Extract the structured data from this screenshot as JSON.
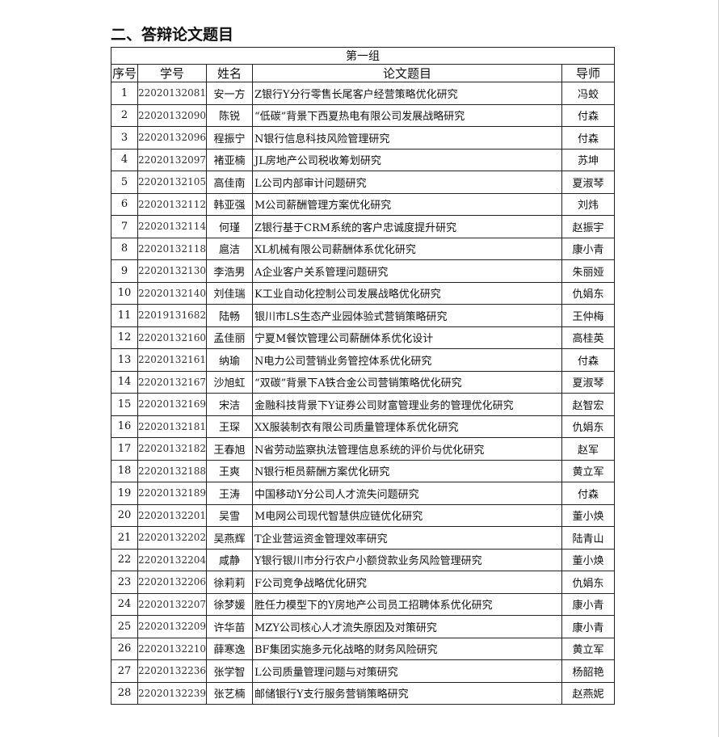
{
  "section_title": "二、答辩论文题目",
  "table": {
    "group": "第一组",
    "headers": [
      "序号",
      "学号",
      "姓名",
      "论文题目",
      "导师"
    ],
    "rows": [
      [
        "1",
        "22020132081",
        "安一方",
        "Z银行Y分行零售长尾客户经营策略优化研究",
        "冯蛟"
      ],
      [
        "2",
        "22020132090",
        "陈锐",
        "“低碳”背景下西夏热电有限公司发展战略研究",
        "付森"
      ],
      [
        "3",
        "22020132096",
        "程振宁",
        "N银行信息科技风险管理研究",
        "付森"
      ],
      [
        "4",
        "22020132097",
        "褚亚楠",
        "JL房地产公司税收筹划研究",
        "苏坤"
      ],
      [
        "5",
        "22020132105",
        "高佳南",
        "L公司内部审计问题研究",
        "夏淑琴"
      ],
      [
        "6",
        "22020132112",
        "韩亚强",
        "M公司薪酬管理方案优化研究",
        "刘炜"
      ],
      [
        "7",
        "22020132114",
        "何瑾",
        "Z银行基于CRM系统的客户忠诚度提升研究",
        "赵振宇"
      ],
      [
        "8",
        "22020132118",
        "扈洁",
        "XL机械有限公司薪酬体系优化研究",
        "康小青"
      ],
      [
        "9",
        "22020132130",
        "李浩男",
        "A企业客户关系管理问题研究",
        "朱丽娅"
      ],
      [
        "10",
        "22020132140",
        "刘佳瑞",
        "K工业自动化控制公司发展战略优化研究",
        "仇娟东"
      ],
      [
        "11",
        "22019131682",
        "陆畅",
        "银川市LS生态产业园体验式营销策略研究",
        "王仲梅"
      ],
      [
        "12",
        "22020132160",
        "孟佳丽",
        "宁夏M餐饮管理公司薪酬体系优化设计",
        "高桂英"
      ],
      [
        "13",
        "22020132161",
        "纳瑜",
        "N电力公司营销业务管控体系优化研究",
        "付森"
      ],
      [
        "14",
        "22020132167",
        "沙旭虹",
        "“双碳”背景下A铁合金公司营销策略优化研究",
        "夏淑琴"
      ],
      [
        "15",
        "22020132169",
        "宋洁",
        "金融科技背景下Y证券公司财富管理业务的管理优化研究",
        "赵智宏"
      ],
      [
        "16",
        "22020132181",
        "王琛",
        "XX服装制衣有限公司质量管理体系优化研究",
        "仇娟东"
      ],
      [
        "17",
        "22020132182",
        "王春旭",
        "N省劳动监察执法管理信息系统的评价与优化研究",
        "赵军"
      ],
      [
        "18",
        "22020132188",
        "王爽",
        "N银行柜员薪酬方案优化研究",
        "黄立军"
      ],
      [
        "19",
        "22020132189",
        "王涛",
        "中国移动Y分公司人才流失问题研究",
        "付森"
      ],
      [
        "20",
        "22020132201",
        "吴雪",
        "M电网公司现代智慧供应链优化研究",
        "董小焕"
      ],
      [
        "21",
        "22020132202",
        "吴燕辉",
        "T企业营运资金管理效率研究",
        "陆青山"
      ],
      [
        "22",
        "22020132204",
        "咸静",
        "Y银行银川市分行农户小额贷款业务风险管理研究",
        "董小焕"
      ],
      [
        "23",
        "22020132206",
        "徐莉莉",
        "F公司竞争战略优化研究",
        "仇娟东"
      ],
      [
        "24",
        "22020132207",
        "徐梦媛",
        "胜任力模型下的Y房地产公司员工招聘体系优化研究",
        "康小青"
      ],
      [
        "25",
        "22020132209",
        "许华苗",
        "MZY公司核心人才流失原因及对策研究",
        "康小青"
      ],
      [
        "26",
        "22020132210",
        "薛寒逸",
        "BF集团实施多元化战略的财务风险研究",
        "黄立军"
      ],
      [
        "27",
        "22020132236",
        "张学智",
        "L公司质量管理问题与对策研究",
        "杨韶艳"
      ],
      [
        "28",
        "22020132239",
        "张艺楠",
        "邮储银行Y支行服务营销策略研究",
        "赵燕妮"
      ]
    ]
  }
}
